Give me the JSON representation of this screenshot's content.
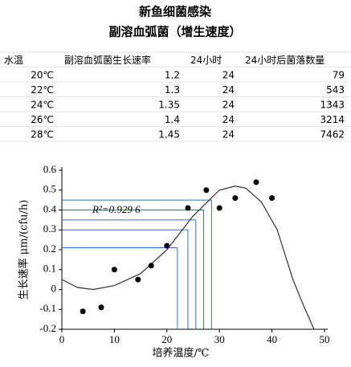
{
  "header": {
    "title": "新鱼细菌感染",
    "subtitle": "副溶血弧菌（增生速度）"
  },
  "table": {
    "columns": [
      "水温",
      "副溶血弧菌生长速率",
      "24小时",
      "24小时后菌落数量"
    ],
    "rows": [
      [
        "20℃",
        1.2,
        24,
        79
      ],
      [
        "22℃",
        1.3,
        24,
        543
      ],
      [
        "24℃",
        1.35,
        24,
        1343
      ],
      [
        "26℃",
        1.4,
        24,
        3214
      ],
      [
        "28℃",
        1.45,
        24,
        7462
      ]
    ]
  },
  "chart_data": {
    "type": "scatter",
    "xlabel": "培养温度/℃",
    "ylabel": "生长速率 μm/(cfu/h)",
    "annotation": "R²=0.929 6",
    "xlim": [
      0,
      50
    ],
    "ylim": [
      -0.2,
      0.6
    ],
    "xticks": [
      0,
      10,
      20,
      30,
      40,
      50
    ],
    "yticks": [
      -0.2,
      -0.1,
      0,
      0.1,
      0.2,
      0.3,
      0.4,
      0.5,
      0.6
    ],
    "points": {
      "color": "#000000",
      "x": [
        4,
        7.5,
        10,
        14.5,
        17,
        20,
        24,
        27.5,
        30,
        33,
        37,
        40
      ],
      "values": [
        -0.11,
        -0.09,
        0.1,
        0.05,
        0.12,
        0.22,
        0.41,
        0.5,
        0.41,
        0.46,
        0.54,
        0.46
      ]
    },
    "curve": {
      "color": "#333333",
      "x": [
        0,
        3,
        6,
        10,
        15,
        20,
        25,
        30,
        33,
        35,
        38,
        41,
        44,
        46,
        48
      ],
      "values": [
        0.05,
        0.01,
        0,
        0.02,
        0.08,
        0.2,
        0.37,
        0.5,
        0.52,
        0.51,
        0.44,
        0.3,
        0.05,
        -0.08,
        -0.2
      ]
    },
    "guides": {
      "color": "#2e6fd0",
      "x": [
        22,
        24,
        25.5,
        27,
        28.5
      ],
      "values": [
        0.21,
        0.3,
        0.35,
        0.4,
        0.45
      ]
    }
  }
}
